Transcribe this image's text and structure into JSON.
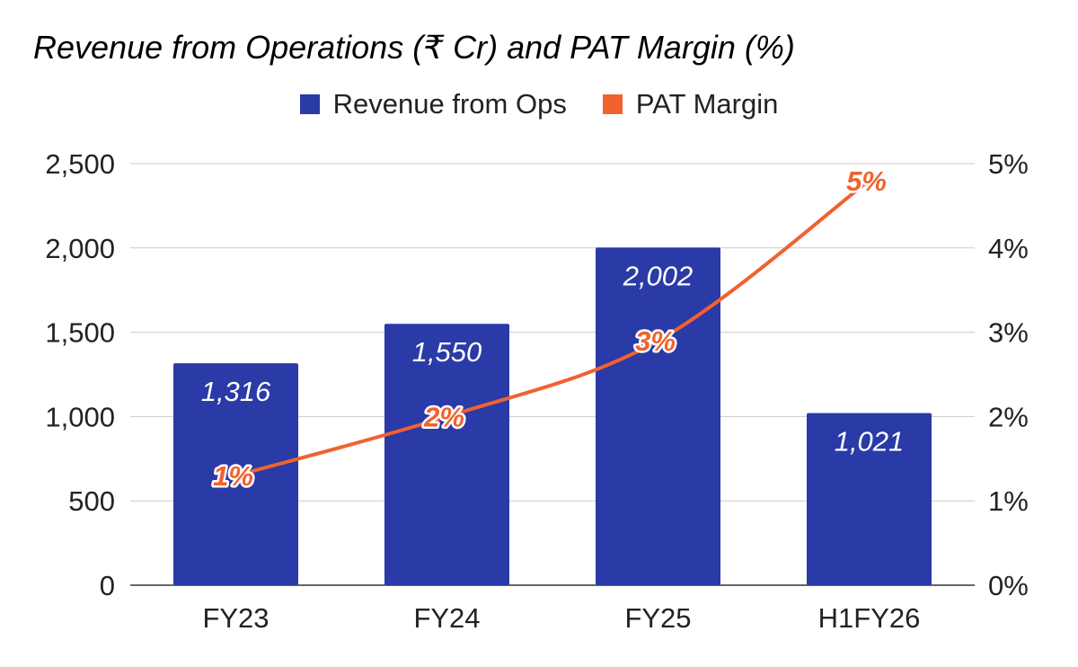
{
  "chart_data": {
    "type": "bar",
    "title": "Revenue from Operations (₹ Cr) and PAT Margin (%)",
    "categories": [
      "FY23",
      "FY24",
      "FY25",
      "H1FY26"
    ],
    "series": [
      {
        "name": "Revenue from Ops",
        "type": "bar",
        "axis": "left",
        "color": "#2A3AA7",
        "values": [
          1316,
          1550,
          2002,
          1021
        ],
        "labels": [
          "1,316",
          "1,550",
          "2,002",
          "1,021"
        ]
      },
      {
        "name": "PAT Margin",
        "type": "line",
        "axis": "right",
        "color": "#F0622E",
        "values": [
          1.3,
          2.0,
          2.9,
          4.8
        ],
        "labels": [
          "1%",
          "2%",
          "3%",
          "5%"
        ]
      }
    ],
    "y_left": {
      "ylim": [
        0,
        2500
      ],
      "ticks": [
        0,
        500,
        1000,
        1500,
        2000,
        2500
      ],
      "tick_labels": [
        "0",
        "500",
        "1,000",
        "1,500",
        "2,000",
        "2,500"
      ]
    },
    "y_right": {
      "ylim": [
        0,
        5
      ],
      "ticks": [
        0,
        1,
        2,
        3,
        4,
        5
      ],
      "tick_labels": [
        "0%",
        "1%",
        "2%",
        "3%",
        "4%",
        "5%"
      ]
    },
    "grid": true,
    "legend_position": "top"
  }
}
